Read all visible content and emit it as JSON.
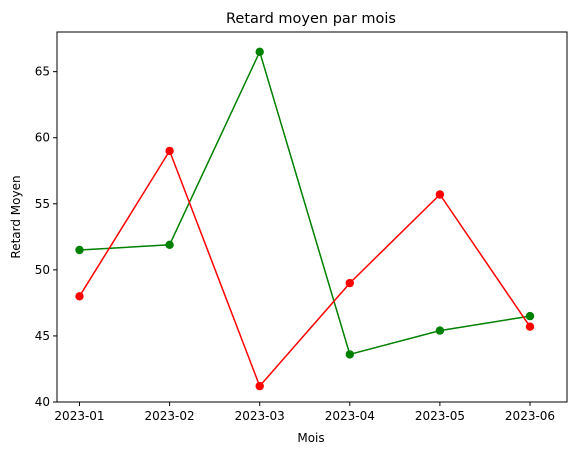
{
  "chart_data": {
    "type": "line",
    "title": "Retard moyen par mois",
    "xlabel": "Mois",
    "ylabel": "Retard Moyen",
    "categories": [
      "2023-01",
      "2023-02",
      "2023-03",
      "2023-04",
      "2023-05",
      "2023-06"
    ],
    "ylim": [
      40,
      68
    ],
    "yticks": [
      40,
      45,
      50,
      55,
      60,
      65
    ],
    "grid": false,
    "series": [
      {
        "color": "#008000",
        "values": [
          51.5,
          51.9,
          66.5,
          43.6,
          45.4,
          46.5
        ]
      },
      {
        "color": "#ff0000",
        "values": [
          48.0,
          59.0,
          41.2,
          49.0,
          55.7,
          45.7
        ]
      }
    ]
  }
}
